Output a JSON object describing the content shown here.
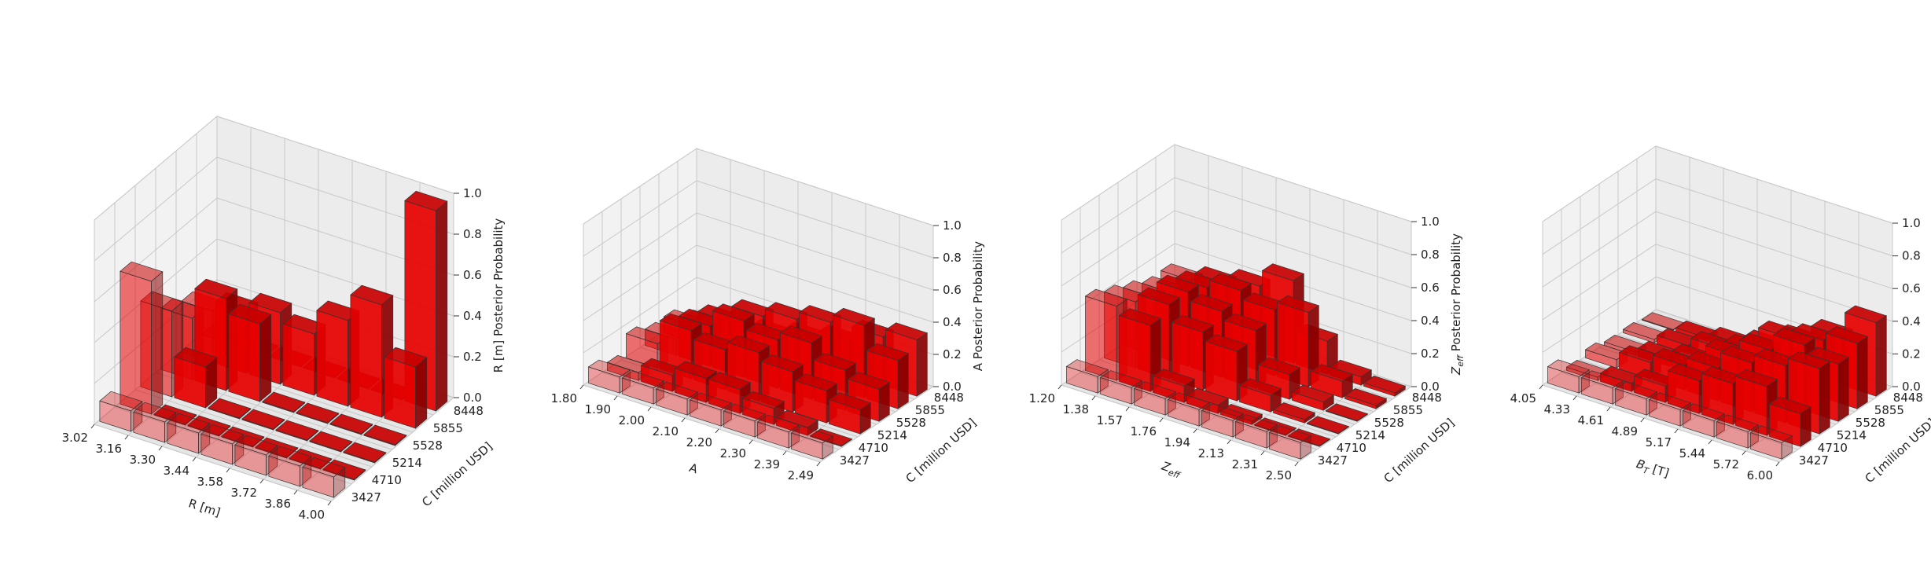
{
  "figure": {
    "zlabel_suffix": " Posterior Probability",
    "y_axis_label": "C [million USD]",
    "bar_color": "#e00000",
    "y_ticks": [
      "3427",
      "4710",
      "5214",
      "5528",
      "5855",
      "8448"
    ],
    "z_ticks": [
      "0.0",
      "0.2",
      "0.4",
      "0.6",
      "0.8",
      "1.0"
    ]
  },
  "chart_data": [
    {
      "type": "bar3d",
      "xlabel": "R [m]",
      "zlabel": "R [m] Posterior Probability",
      "x_ticks": [
        "3.02",
        "3.16",
        "3.30",
        "3.44",
        "3.58",
        "3.72",
        "3.86",
        "4.00"
      ],
      "y_ticks": [
        "3427",
        "4710",
        "5214",
        "5528",
        "5855",
        "8448"
      ],
      "zlim": [
        0,
        1
      ],
      "values": [
        [
          0.1,
          0.1,
          0.1,
          0.1,
          0.1,
          0.1,
          0.1
        ],
        [
          0.65,
          0.0,
          0.0,
          0.0,
          0.0,
          0.0,
          0.0
        ],
        [
          0.42,
          0.2,
          0.0,
          0.0,
          0.0,
          0.0,
          0.0
        ],
        [
          0.3,
          0.45,
          0.38,
          0.0,
          0.0,
          0.0,
          0.0
        ],
        [
          0.25,
          0.3,
          0.35,
          0.3,
          0.42,
          0.55,
          0.3
        ],
        [
          0.0,
          0.0,
          0.0,
          0.0,
          0.0,
          0.0,
          0.98
        ]
      ]
    },
    {
      "type": "bar3d",
      "xlabel": "A",
      "zlabel": "A Posterior Probability",
      "x_ticks": [
        "1.80",
        "1.90",
        "2.00",
        "2.10",
        "2.20",
        "2.30",
        "2.39",
        "2.49"
      ],
      "y_ticks": [
        "3427",
        "4710",
        "5214",
        "5528",
        "5855",
        "8448"
      ],
      "zlim": [
        0,
        1
      ],
      "values": [
        [
          0.1,
          0.1,
          0.1,
          0.1,
          0.1,
          0.1,
          0.1
        ],
        [
          0.05,
          0.1,
          0.15,
          0.15,
          0.1,
          0.05,
          0.0
        ],
        [
          0.15,
          0.3,
          0.25,
          0.3,
          0.25,
          0.2,
          0.15
        ],
        [
          0.1,
          0.25,
          0.35,
          0.3,
          0.35,
          0.25,
          0.2
        ],
        [
          0.1,
          0.2,
          0.3,
          0.35,
          0.4,
          0.45,
          0.3
        ],
        [
          0.02,
          0.05,
          0.1,
          0.15,
          0.2,
          0.3,
          0.35
        ]
      ]
    },
    {
      "type": "bar3d",
      "xlabel": "Z_eff",
      "zlabel": "Z_eff Posterior Probability",
      "x_ticks": [
        "1.20",
        "1.38",
        "1.57",
        "1.76",
        "1.94",
        "2.13",
        "2.31",
        "2.50"
      ],
      "y_ticks": [
        "3427",
        "4710",
        "5214",
        "5528",
        "5855",
        "8448"
      ],
      "zlim": [
        0,
        1
      ],
      "values": [
        [
          0.1,
          0.1,
          0.1,
          0.1,
          0.1,
          0.1,
          0.1
        ],
        [
          0.45,
          0.4,
          0.1,
          0.05,
          0.02,
          0.0,
          0.0
        ],
        [
          0.4,
          0.45,
          0.35,
          0.3,
          0.1,
          0.02,
          0.0
        ],
        [
          0.35,
          0.45,
          0.4,
          0.35,
          0.15,
          0.05,
          0.0
        ],
        [
          0.3,
          0.4,
          0.45,
          0.4,
          0.45,
          0.1,
          0.02
        ],
        [
          0.3,
          0.35,
          0.4,
          0.5,
          0.2,
          0.05,
          0.02
        ]
      ]
    },
    {
      "type": "bar3d",
      "xlabel": "B_T [T]",
      "zlabel": "B_T [T] Posterior Probability",
      "x_ticks": [
        "4.05",
        "4.33",
        "4.61",
        "4.89",
        "5.17",
        "5.44",
        "5.72",
        "6.00"
      ],
      "y_ticks": [
        "3427",
        "4710",
        "5214",
        "5528",
        "5855",
        "8448"
      ],
      "zlim": [
        0,
        1
      ],
      "values": [
        [
          0.1,
          0.1,
          0.1,
          0.1,
          0.1,
          0.1,
          0.1
        ],
        [
          0.02,
          0.05,
          0.1,
          0.2,
          0.25,
          0.3,
          0.2
        ],
        [
          0.05,
          0.1,
          0.15,
          0.2,
          0.3,
          0.35,
          0.4
        ],
        [
          0.02,
          0.05,
          0.1,
          0.2,
          0.3,
          0.4,
          0.35
        ],
        [
          0.02,
          0.05,
          0.1,
          0.15,
          0.3,
          0.35,
          0.4
        ],
        [
          0.0,
          0.02,
          0.05,
          0.1,
          0.2,
          0.3,
          0.45
        ]
      ]
    }
  ]
}
